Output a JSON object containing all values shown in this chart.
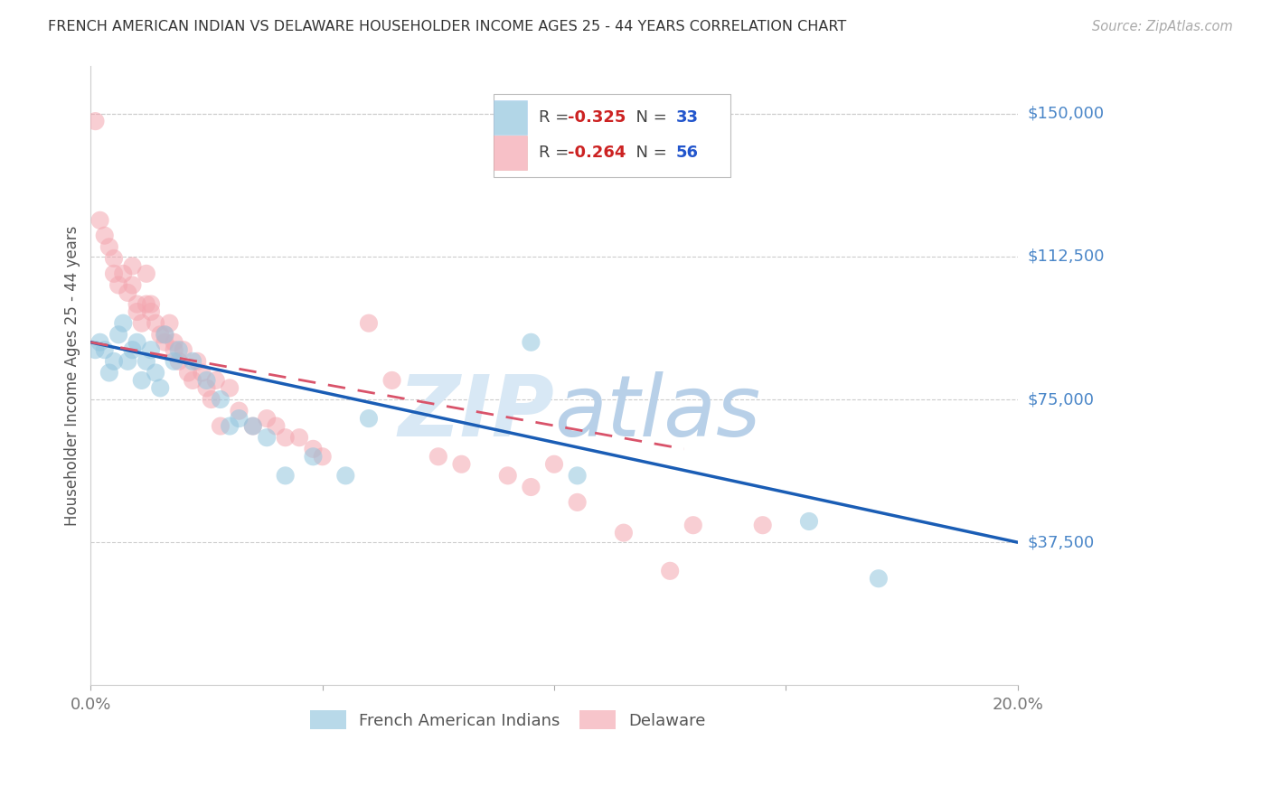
{
  "title": "FRENCH AMERICAN INDIAN VS DELAWARE HOUSEHOLDER INCOME AGES 25 - 44 YEARS CORRELATION CHART",
  "source": "Source: ZipAtlas.com",
  "ylabel": "Householder Income Ages 25 - 44 years",
  "xlim": [
    0.0,
    0.2
  ],
  "ylim": [
    0,
    162500
  ],
  "xticks": [
    0.0,
    0.05,
    0.1,
    0.15,
    0.2
  ],
  "xticklabels": [
    "0.0%",
    "",
    "",
    "",
    "20.0%"
  ],
  "ytick_values": [
    37500,
    75000,
    112500,
    150000
  ],
  "ytick_labels": [
    "$37,500",
    "$75,000",
    "$112,500",
    "$150,000"
  ],
  "legend1_R": "-0.325",
  "legend1_N": "33",
  "legend2_R": "-0.264",
  "legend2_N": "56",
  "legend_label1": "French American Indians",
  "legend_label2": "Delaware",
  "blue_color": "#92c5de",
  "pink_color": "#f4a6b0",
  "line_blue": "#1a5db5",
  "line_pink": "#d9536a",
  "axis_tick_color": "#4a86c8",
  "title_color": "#333333",
  "watermark_zip": "ZIP",
  "watermark_atlas": "atlas",
  "blue_scatter_x": [
    0.001,
    0.002,
    0.003,
    0.004,
    0.005,
    0.006,
    0.007,
    0.008,
    0.009,
    0.01,
    0.011,
    0.012,
    0.013,
    0.014,
    0.015,
    0.016,
    0.018,
    0.019,
    0.022,
    0.025,
    0.028,
    0.03,
    0.032,
    0.035,
    0.038,
    0.042,
    0.048,
    0.055,
    0.06,
    0.095,
    0.105,
    0.155,
    0.17
  ],
  "blue_scatter_y": [
    88000,
    90000,
    88000,
    82000,
    85000,
    92000,
    95000,
    85000,
    88000,
    90000,
    80000,
    85000,
    88000,
    82000,
    78000,
    92000,
    85000,
    88000,
    85000,
    80000,
    75000,
    68000,
    70000,
    68000,
    65000,
    55000,
    60000,
    55000,
    70000,
    90000,
    55000,
    43000,
    28000
  ],
  "pink_scatter_x": [
    0.001,
    0.002,
    0.003,
    0.004,
    0.005,
    0.005,
    0.006,
    0.007,
    0.008,
    0.009,
    0.009,
    0.01,
    0.01,
    0.011,
    0.012,
    0.012,
    0.013,
    0.013,
    0.014,
    0.015,
    0.016,
    0.016,
    0.017,
    0.018,
    0.018,
    0.019,
    0.02,
    0.021,
    0.022,
    0.023,
    0.024,
    0.025,
    0.026,
    0.027,
    0.028,
    0.03,
    0.032,
    0.035,
    0.038,
    0.04,
    0.042,
    0.045,
    0.048,
    0.05,
    0.06,
    0.065,
    0.075,
    0.08,
    0.09,
    0.095,
    0.1,
    0.105,
    0.115,
    0.125,
    0.13,
    0.145
  ],
  "pink_scatter_y": [
    148000,
    122000,
    118000,
    115000,
    112000,
    108000,
    105000,
    108000,
    103000,
    110000,
    105000,
    98000,
    100000,
    95000,
    108000,
    100000,
    100000,
    98000,
    95000,
    92000,
    90000,
    92000,
    95000,
    88000,
    90000,
    85000,
    88000,
    82000,
    80000,
    85000,
    82000,
    78000,
    75000,
    80000,
    68000,
    78000,
    72000,
    68000,
    70000,
    68000,
    65000,
    65000,
    62000,
    60000,
    95000,
    80000,
    60000,
    58000,
    55000,
    52000,
    58000,
    48000,
    40000,
    30000,
    42000,
    42000
  ]
}
